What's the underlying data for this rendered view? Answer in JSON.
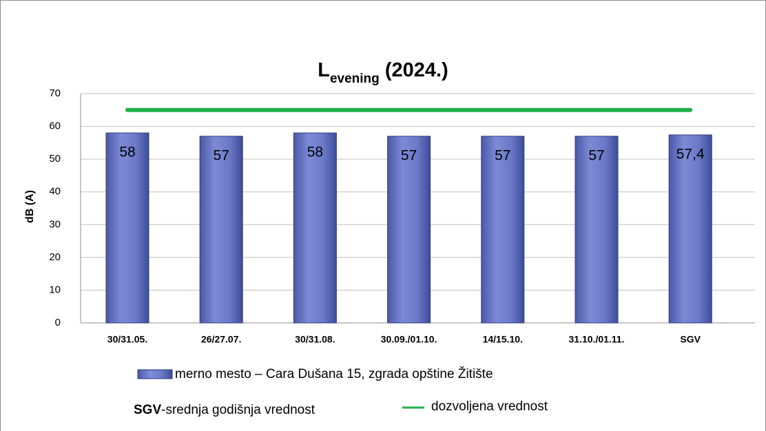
{
  "chart_data": {
    "type": "bar",
    "title": {
      "main": "L",
      "sub": "evening",
      "rest": " (2024.)"
    },
    "ylabel": "dB (A)",
    "categories": [
      "30/31.05.",
      "26/27.07.",
      "30/31.08.",
      "30.09./01.10.",
      "14/15.10.",
      "31.10./01.11.",
      "SGV"
    ],
    "series": [
      {
        "name": "merno mesto – Cara Dušana 15, zgrada opštine Žitište",
        "color": "#6a78c8",
        "type": "bar",
        "values": [
          58,
          57,
          58,
          57,
          57,
          57,
          57.4
        ],
        "value_labels": [
          "58",
          "57",
          "58",
          "57",
          "57",
          "57",
          "57,4"
        ]
      },
      {
        "name": "dozvoljena vrednost",
        "color": "#22b04b",
        "type": "line",
        "values": [
          65,
          65,
          65,
          65,
          65,
          65,
          65
        ]
      }
    ],
    "ylim": [
      0,
      70
    ],
    "yticks": [
      0,
      10,
      20,
      30,
      40,
      50,
      60,
      70
    ],
    "grid": true,
    "legend": "bottom",
    "note": {
      "term": "SGV",
      "text": "-srednja godišnja vrednost"
    }
  }
}
